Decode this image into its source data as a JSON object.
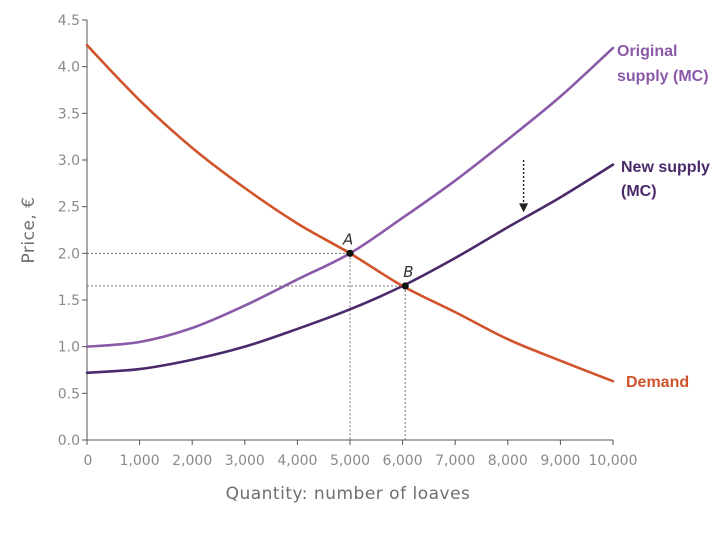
{
  "chart_data": {
    "type": "line",
    "xlabel": "Quantity: number of loaves",
    "ylabel": "Price, €",
    "xlim": [
      0,
      10000
    ],
    "ylim": [
      0,
      4.5
    ],
    "x_ticks": [
      "0",
      "1,000",
      "2,000",
      "3,000",
      "4,000",
      "5,000",
      "6,000",
      "7,000",
      "8,000",
      "9,000",
      "10,000"
    ],
    "y_ticks": [
      "0.0",
      "0.5",
      "1.0",
      "1.5",
      "2.0",
      "2.5",
      "3.0",
      "3.5",
      "4.0",
      "4.5"
    ],
    "grid": false,
    "series": [
      {
        "name": "Original supply (MC)",
        "label_lines": [
          "Original",
          "supply (MC)"
        ],
        "color": "#8a5aa8",
        "x": [
          0,
          1000,
          2000,
          3000,
          4000,
          5000,
          6000,
          7000,
          8000,
          9000,
          10000
        ],
        "y": [
          1.0,
          1.05,
          1.2,
          1.44,
          1.72,
          2.0,
          2.38,
          2.78,
          3.22,
          3.68,
          4.2
        ]
      },
      {
        "name": "New supply (MC)",
        "label_lines": [
          "New supply",
          "(MC)"
        ],
        "color": "#4b2a6b",
        "x": [
          0,
          1000,
          2000,
          3000,
          4000,
          5000,
          6000,
          7000,
          8000,
          9000,
          10000
        ],
        "y": [
          0.72,
          0.76,
          0.86,
          1.0,
          1.19,
          1.4,
          1.65,
          1.95,
          2.28,
          2.6,
          2.95
        ]
      },
      {
        "name": "Demand",
        "label_lines": [
          "Demand"
        ],
        "color": "#d0532b",
        "x": [
          0,
          1000,
          2000,
          3000,
          4000,
          5000,
          6000,
          7000,
          8000,
          9000,
          10000
        ],
        "y": [
          4.23,
          3.64,
          3.13,
          2.7,
          2.32,
          2.0,
          1.65,
          1.37,
          1.08,
          0.85,
          0.63
        ]
      }
    ],
    "points": [
      {
        "label": "A",
        "x": 5000,
        "y": 2.0
      },
      {
        "label": "B",
        "x": 6050,
        "y": 1.65
      }
    ],
    "shift_arrow": {
      "x": 8300,
      "y_from": 3.0,
      "y_to": 2.45
    }
  }
}
